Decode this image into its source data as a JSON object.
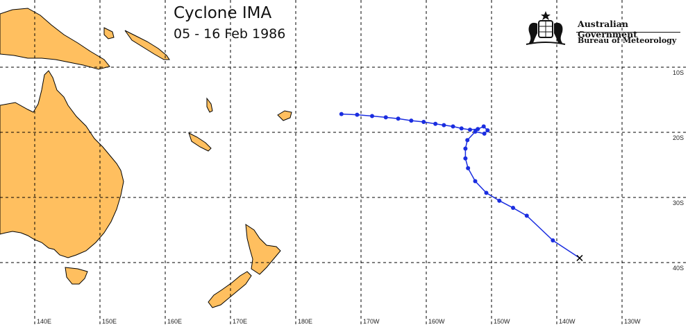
{
  "map": {
    "title": "Cyclone IMA",
    "subtitle": "05 - 16 Feb 1986",
    "logo": {
      "government": "Australian Government",
      "bureau": "Bureau of Meteorology"
    },
    "longitude_labels": [
      "140E",
      "150E",
      "160E",
      "170E",
      "180E",
      "170W",
      "160W",
      "150W",
      "140W",
      "130W"
    ],
    "latitude_labels": [
      "10S",
      "20S",
      "30S",
      "40S"
    ],
    "colors": {
      "land": "#ffbf5f",
      "track": "#1a2de0",
      "grid": "#000000"
    },
    "track_points": [
      {
        "lon": -173.0,
        "lat": -17.2
      },
      {
        "lon": -170.6,
        "lat": -17.3
      },
      {
        "lon": -168.3,
        "lat": -17.5
      },
      {
        "lon": -166.2,
        "lat": -17.7
      },
      {
        "lon": -164.3,
        "lat": -17.9
      },
      {
        "lon": -162.3,
        "lat": -18.2
      },
      {
        "lon": -160.4,
        "lat": -18.4
      },
      {
        "lon": -158.6,
        "lat": -18.7
      },
      {
        "lon": -157.3,
        "lat": -18.9
      },
      {
        "lon": -155.9,
        "lat": -19.1
      },
      {
        "lon": -154.6,
        "lat": -19.4
      },
      {
        "lon": -153.3,
        "lat": -19.6
      },
      {
        "lon": -152.1,
        "lat": -19.5
      },
      {
        "lon": -151.2,
        "lat": -19.1
      },
      {
        "lon": -150.6,
        "lat": -19.7
      },
      {
        "lon": -151.1,
        "lat": -20.2
      },
      {
        "lon": -152.5,
        "lat": -19.9
      },
      {
        "lon": -153.7,
        "lat": -21.2
      },
      {
        "lon": -154.0,
        "lat": -22.5
      },
      {
        "lon": -154.0,
        "lat": -24.0
      },
      {
        "lon": -153.6,
        "lat": -25.5
      },
      {
        "lon": -152.5,
        "lat": -27.5
      },
      {
        "lon": -150.8,
        "lat": -29.3
      },
      {
        "lon": -148.8,
        "lat": -30.5
      },
      {
        "lon": -146.7,
        "lat": -31.6
      },
      {
        "lon": -144.6,
        "lat": -32.8
      },
      {
        "lon": -140.6,
        "lat": -36.6
      },
      {
        "lon": -136.5,
        "lat": -39.3
      }
    ],
    "end_marker": "x-icon"
  }
}
